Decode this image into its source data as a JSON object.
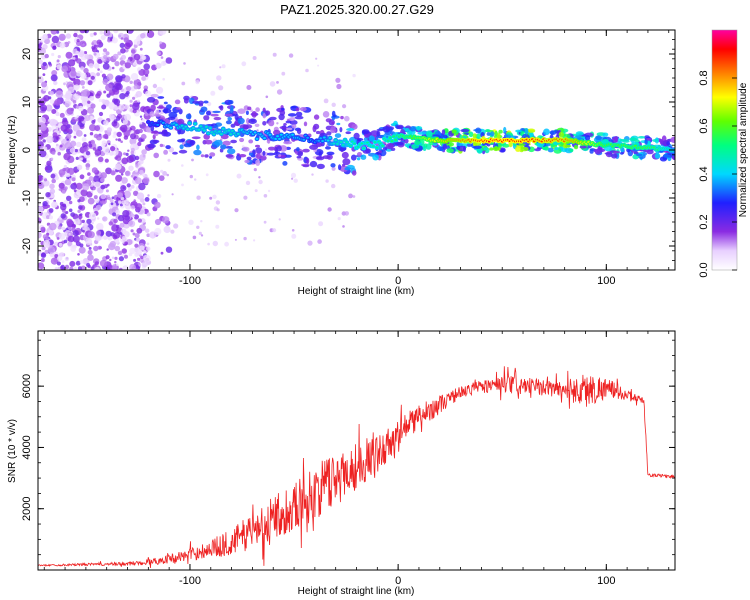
{
  "title": "PAZ1.2025.320.00.27.G29",
  "chart_data": [
    {
      "type": "heatmap",
      "xlabel": "Height of straight line (km)",
      "ylabel": "Frequency (Hz)",
      "xlim": [
        -173,
        133
      ],
      "ylim": [
        -25,
        25
      ],
      "xticks": [
        -100,
        0,
        100
      ],
      "yticks": [
        -20,
        -10,
        0,
        10,
        20
      ],
      "colorbar": {
        "label": "Normalized spectral amplitude",
        "range": [
          0,
          1
        ],
        "ticks": [
          "0.0",
          "0.2",
          "0.4",
          "0.6",
          "0.8"
        ]
      },
      "ridge": {
        "x": [
          -120,
          -110,
          -100,
          -90,
          -80,
          -70,
          -60,
          -50,
          -40,
          -30,
          -20,
          -10,
          0,
          20,
          40,
          60,
          80,
          100,
          120,
          133
        ],
        "freq": [
          6,
          5,
          5,
          4,
          4,
          3,
          3,
          3,
          2,
          2,
          1,
          1,
          3,
          2,
          2,
          2,
          2,
          1,
          0.5,
          0
        ],
        "amplitude": [
          0.3,
          0.4,
          0.45,
          0.45,
          0.45,
          0.4,
          0.4,
          0.4,
          0.35,
          0.45,
          0.5,
          0.5,
          0.55,
          0.75,
          0.9,
          0.9,
          0.85,
          0.6,
          0.6,
          0.45
        ]
      }
    },
    {
      "type": "line",
      "xlabel": "Height of straight line (km)",
      "ylabel": "SNR (10 * v/v)",
      "xlim": [
        -173,
        133
      ],
      "ylim": [
        0,
        7800
      ],
      "xticks": [
        -100,
        0,
        100
      ],
      "yticks": [
        2000,
        4000,
        6000
      ],
      "color": "#ee2222",
      "x": [
        -173,
        -150,
        -130,
        -115,
        -100,
        -90,
        -80,
        -70,
        -60,
        -50,
        -40,
        -30,
        -20,
        -10,
        0,
        10,
        20,
        30,
        40,
        50,
        60,
        70,
        80,
        90,
        100,
        110,
        118,
        120,
        121,
        133
      ],
      "y": [
        150,
        180,
        200,
        300,
        500,
        700,
        900,
        1300,
        1700,
        2100,
        2500,
        3000,
        3400,
        3800,
        4400,
        5000,
        5400,
        5800,
        6000,
        6050,
        6000,
        5950,
        5900,
        5850,
        5950,
        5700,
        5550,
        3100,
        3100,
        3050
      ],
      "noise": [
        20,
        40,
        60,
        120,
        200,
        300,
        450,
        600,
        700,
        800,
        900,
        900,
        800,
        600,
        500,
        400,
        300,
        200,
        200,
        300,
        300,
        250,
        300,
        600,
        350,
        150,
        100,
        60,
        50,
        50
      ]
    }
  ]
}
